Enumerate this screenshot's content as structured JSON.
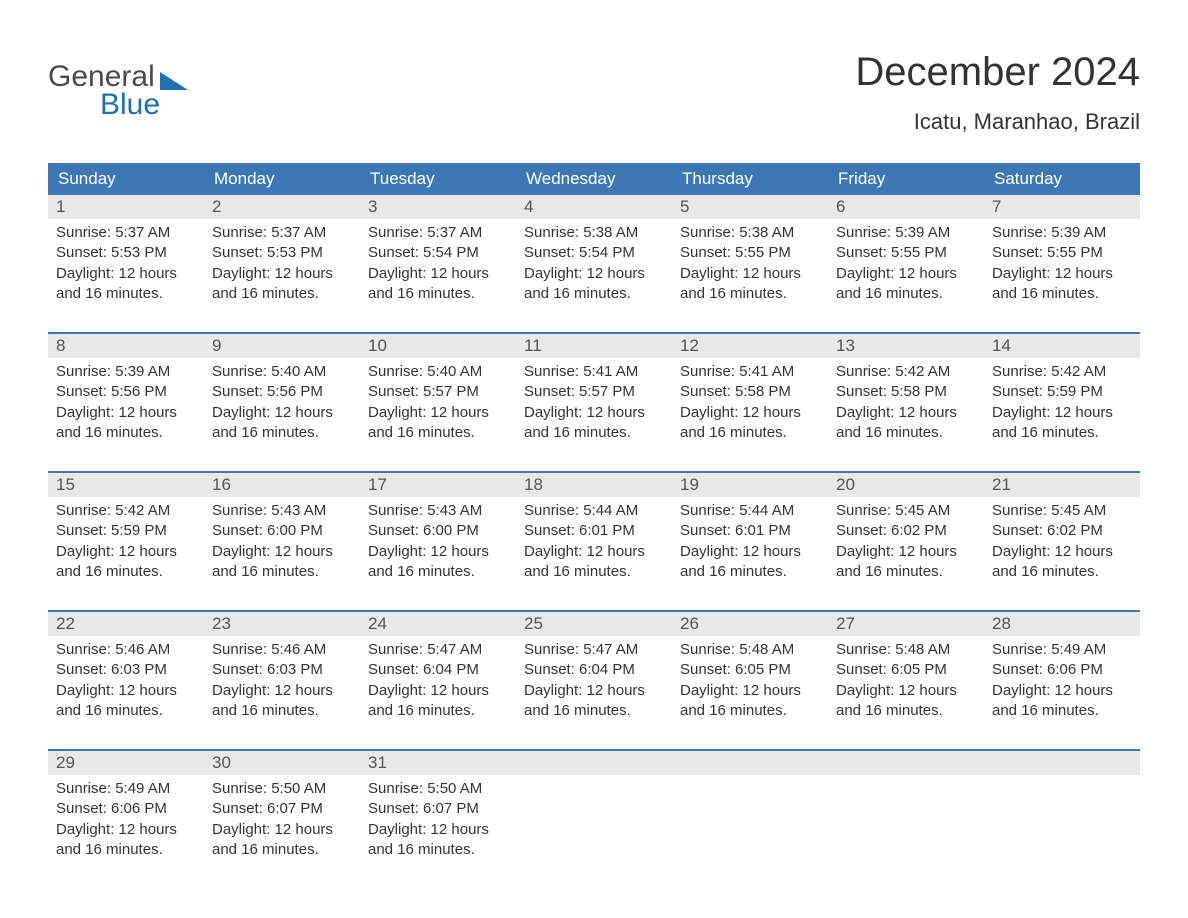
{
  "logo": {
    "general": "General",
    "blue": "Blue",
    "tri_color": "#1f6fb2"
  },
  "title": "December 2024",
  "location": "Icatu, Maranhao, Brazil",
  "colors": {
    "header_bg": "#3d78b4",
    "header_text": "#ffffff",
    "daynum_bg": "#e8e8e8",
    "week_border": "#3d78b4",
    "body_text": "#333333"
  },
  "day_names": [
    "Sunday",
    "Monday",
    "Tuesday",
    "Wednesday",
    "Thursday",
    "Friday",
    "Saturday"
  ],
  "daylight_common": "Daylight: 12 hours and 16 minutes.",
  "weeks": [
    [
      {
        "n": "1",
        "sr": "5:37 AM",
        "ss": "5:53 PM"
      },
      {
        "n": "2",
        "sr": "5:37 AM",
        "ss": "5:53 PM"
      },
      {
        "n": "3",
        "sr": "5:37 AM",
        "ss": "5:54 PM"
      },
      {
        "n": "4",
        "sr": "5:38 AM",
        "ss": "5:54 PM"
      },
      {
        "n": "5",
        "sr": "5:38 AM",
        "ss": "5:55 PM"
      },
      {
        "n": "6",
        "sr": "5:39 AM",
        "ss": "5:55 PM"
      },
      {
        "n": "7",
        "sr": "5:39 AM",
        "ss": "5:55 PM"
      }
    ],
    [
      {
        "n": "8",
        "sr": "5:39 AM",
        "ss": "5:56 PM"
      },
      {
        "n": "9",
        "sr": "5:40 AM",
        "ss": "5:56 PM"
      },
      {
        "n": "10",
        "sr": "5:40 AM",
        "ss": "5:57 PM"
      },
      {
        "n": "11",
        "sr": "5:41 AM",
        "ss": "5:57 PM"
      },
      {
        "n": "12",
        "sr": "5:41 AM",
        "ss": "5:58 PM"
      },
      {
        "n": "13",
        "sr": "5:42 AM",
        "ss": "5:58 PM"
      },
      {
        "n": "14",
        "sr": "5:42 AM",
        "ss": "5:59 PM"
      }
    ],
    [
      {
        "n": "15",
        "sr": "5:42 AM",
        "ss": "5:59 PM"
      },
      {
        "n": "16",
        "sr": "5:43 AM",
        "ss": "6:00 PM"
      },
      {
        "n": "17",
        "sr": "5:43 AM",
        "ss": "6:00 PM"
      },
      {
        "n": "18",
        "sr": "5:44 AM",
        "ss": "6:01 PM"
      },
      {
        "n": "19",
        "sr": "5:44 AM",
        "ss": "6:01 PM"
      },
      {
        "n": "20",
        "sr": "5:45 AM",
        "ss": "6:02 PM"
      },
      {
        "n": "21",
        "sr": "5:45 AM",
        "ss": "6:02 PM"
      }
    ],
    [
      {
        "n": "22",
        "sr": "5:46 AM",
        "ss": "6:03 PM"
      },
      {
        "n": "23",
        "sr": "5:46 AM",
        "ss": "6:03 PM"
      },
      {
        "n": "24",
        "sr": "5:47 AM",
        "ss": "6:04 PM"
      },
      {
        "n": "25",
        "sr": "5:47 AM",
        "ss": "6:04 PM"
      },
      {
        "n": "26",
        "sr": "5:48 AM",
        "ss": "6:05 PM"
      },
      {
        "n": "27",
        "sr": "5:48 AM",
        "ss": "6:05 PM"
      },
      {
        "n": "28",
        "sr": "5:49 AM",
        "ss": "6:06 PM"
      }
    ],
    [
      {
        "n": "29",
        "sr": "5:49 AM",
        "ss": "6:06 PM"
      },
      {
        "n": "30",
        "sr": "5:50 AM",
        "ss": "6:07 PM"
      },
      {
        "n": "31",
        "sr": "5:50 AM",
        "ss": "6:07 PM"
      },
      null,
      null,
      null,
      null
    ]
  ],
  "labels": {
    "sunrise_prefix": "Sunrise: ",
    "sunset_prefix": "Sunset: "
  }
}
